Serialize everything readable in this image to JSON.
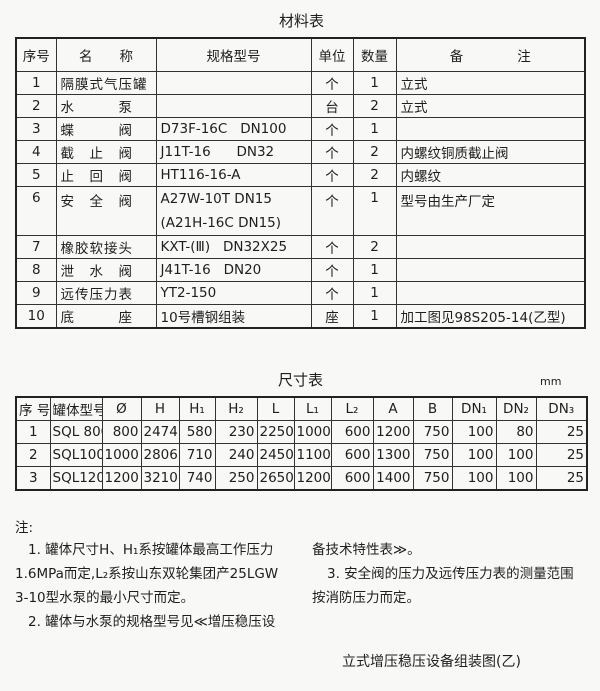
{
  "material_table": {
    "title": "材料表",
    "headers": [
      "序号",
      "名　　称",
      "规格型号",
      "单位",
      "数量",
      "备　　　　注"
    ],
    "rows": [
      {
        "no": "1",
        "name": "隔膜式气压罐",
        "spec": "",
        "unit": "个",
        "qty": "1",
        "note": "立式"
      },
      {
        "no": "2",
        "name": "水　　　泵",
        "spec": "",
        "unit": "台",
        "qty": "2",
        "note": "立式"
      },
      {
        "no": "3",
        "name": "蝶　　　阀",
        "spec": "D73F-16C   DN100",
        "unit": "个",
        "qty": "1",
        "note": ""
      },
      {
        "no": "4",
        "name": "截　止　阀",
        "spec": "J11T-16      DN32",
        "unit": "个",
        "qty": "2",
        "note": "内螺纹铜质截止阀"
      },
      {
        "no": "5",
        "name": "止　回　阀",
        "spec": "HT116-16-A",
        "unit": "个",
        "qty": "2",
        "note": "内螺纹"
      },
      {
        "no": "6",
        "name": "安　全　阀",
        "spec": "A27W-10T DN15\n(A21H-16C DN15)",
        "unit": "个",
        "qty": "1",
        "note": "型号由生产厂定"
      },
      {
        "no": "7",
        "name": "橡胶软接头",
        "spec": "KXT-(Ⅲ)   DN32X25",
        "unit": "个",
        "qty": "2",
        "note": ""
      },
      {
        "no": "8",
        "name": "泄　水　阀",
        "spec": "J41T-16   DN20",
        "unit": "个",
        "qty": "1",
        "note": ""
      },
      {
        "no": "9",
        "name": "远传压力表",
        "spec": "YT2-150",
        "unit": "个",
        "qty": "1",
        "note": ""
      },
      {
        "no": "10",
        "name": "底　　　座",
        "spec": "10号槽钢组装",
        "unit": "座",
        "qty": "1",
        "note": "加工图见98S205-14(乙型)"
      }
    ]
  },
  "size_table": {
    "title": "尺寸表",
    "unit": "mm",
    "headers": [
      "序 号",
      "罐体型号",
      "Ø",
      "H",
      "H₁",
      "H₂",
      "L",
      "L₁",
      "L₂",
      "A",
      "B",
      "DN₁",
      "DN₂",
      "DN₃"
    ],
    "rows": [
      [
        "1",
        "SQL 800",
        "800",
        "2474",
        "580",
        "230",
        "2250",
        "1000",
        "600",
        "1200",
        "750",
        "100",
        "80",
        "25"
      ],
      [
        "2",
        "SQL1000",
        "1000",
        "2806",
        "710",
        "240",
        "2450",
        "1100",
        "600",
        "1300",
        "750",
        "100",
        "100",
        "25"
      ],
      [
        "3",
        "SQL1200",
        "1200",
        "3210",
        "740",
        "250",
        "2650",
        "1200",
        "600",
        "1400",
        "750",
        "100",
        "100",
        "25"
      ]
    ]
  },
  "notes": {
    "label": "注:",
    "left_lines": [
      "1. 罐体尺寸H、H₁系按罐体最高工作压力",
      "1.6MPa而定,L₂系按山东双轮集团产25LGW",
      "3-10型水泵的最小尺寸而定。",
      "2. 罐体与水泵的规格型号见≪增压稳压设"
    ],
    "right_lines": [
      "备技术特性表≫。",
      "3. 安全阀的压力及远传压力表的测量范围",
      "按消防压力而定。"
    ]
  },
  "caption": "立式增压稳压设备组装图(乙)"
}
